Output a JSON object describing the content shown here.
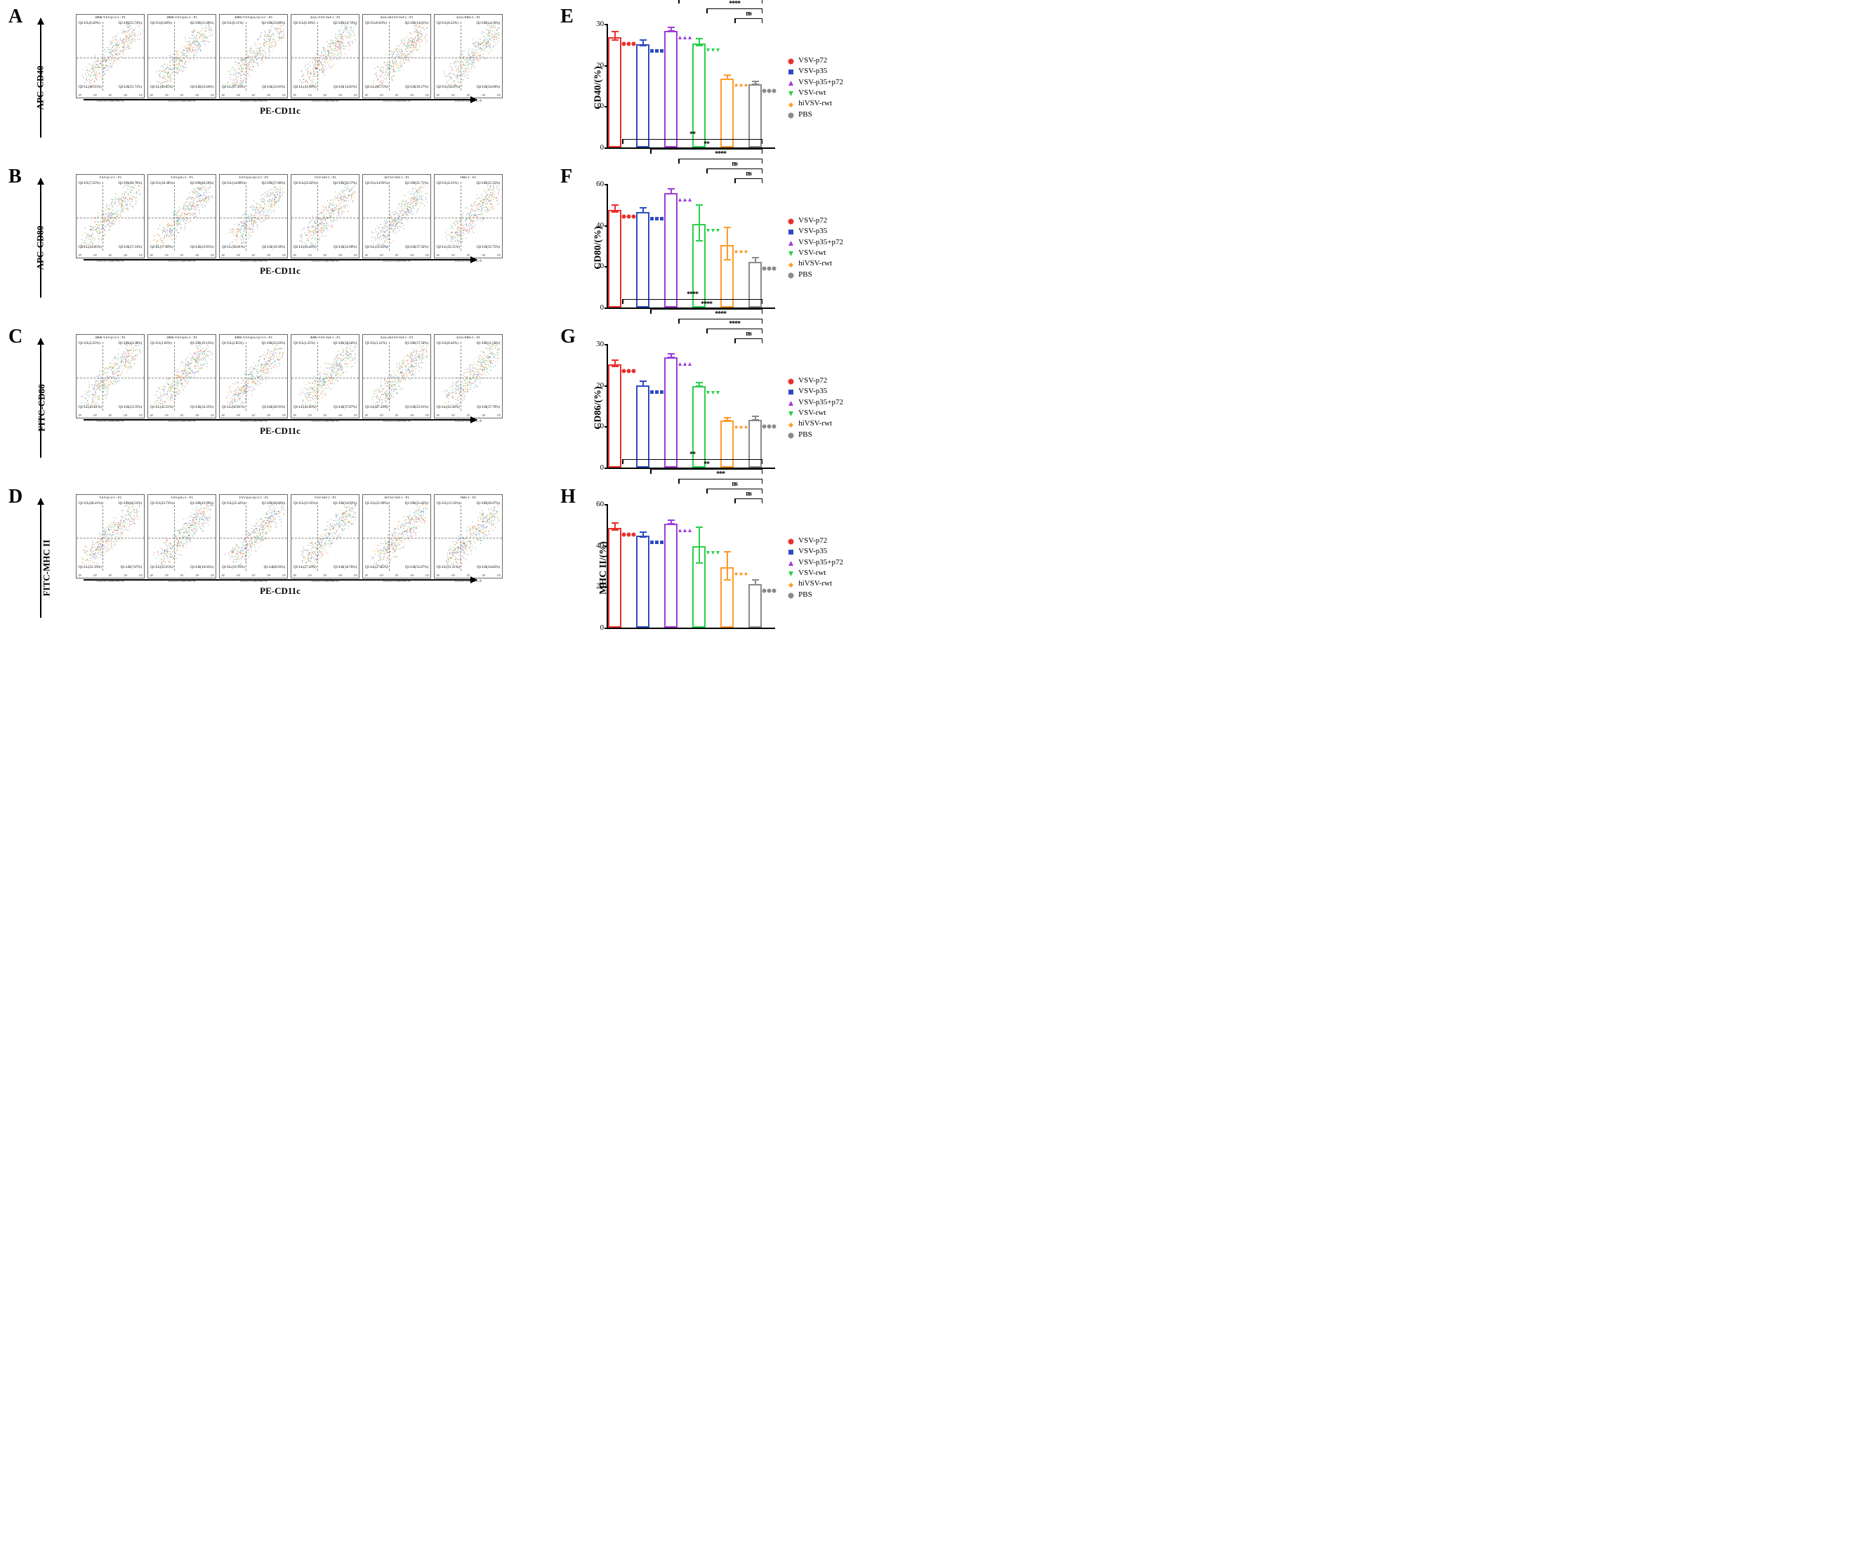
{
  "groups": [
    "VSV-p72",
    "VSV-p35",
    "VSV-p35+p72",
    "VSV-rwt",
    "hiVSV-rwt",
    "PBS"
  ],
  "colors": {
    "VSV-p72": "#e8312f",
    "VSV-p35": "#2e4bc0",
    "VSV-p35+p72": "#a03bd6",
    "VSV-rwt": "#2bcf4a",
    "hiVSV-rwt": "#ff9a2a",
    "PBS": "#8a8a8a"
  },
  "markers": {
    "VSV-p72": "circle",
    "VSV-p35": "square",
    "VSV-p35+p72": "triangle",
    "VSV-rwt": "invtriangle",
    "hiVSV-rwt": "diamond",
    "PBS": "circle"
  },
  "scatter_colors": [
    "#e04a28",
    "#2a4fc4",
    "#f0a828",
    "#2bc46e"
  ],
  "panels_left": [
    {
      "letter": "A",
      "y": "APC-CD40",
      "x": "PE-CD11c",
      "plots": [
        {
          "title": "4086-VSV-p72-1 : P1",
          "ul": "Q2-UL(0.20%)",
          "ur": "Q2-UR(25.74%)",
          "ll": "Q2-LL(68.35%)",
          "lr": "Q2-LR(25.71%)"
        },
        {
          "title": "4086-VSV-p35-1 : P1",
          "ul": "Q2-UL(0.28%)",
          "ur": "Q2-UR(21.60%)",
          "ll": "Q2-LL(60.85%)",
          "lr": "Q2-LR(22.64%)"
        },
        {
          "title": "4086-VSV-p35+p72-1 : P1",
          "ul": "Q2-UL(0.11%)",
          "ur": "Q2-UR(23.89%)",
          "ll": "Q2-LL(67.36%)",
          "lr": "Q2-LR(22.01%)"
        },
        {
          "title": "4335-VSV-rwt-1 : P1",
          "ul": "Q2-UL(0.18%)",
          "ur": "Q2-UR(24.74%)",
          "ll": "Q2-LL(43.99%)",
          "lr": "Q2-LR(14.81%)"
        },
        {
          "title": "4335-hiVSV-rwt-1 : P1",
          "ul": "Q2-UL(0.03%)",
          "ur": "Q2-UR(14.81%)",
          "ll": "Q2-LL(68.75%)",
          "lr": "Q2-LR(30.37%)"
        },
        {
          "title": "4335-PBS-1 : P1",
          "ul": "Q2-UL(0.23%)",
          "ur": "Q2-UR(14.50%)",
          "ll": "Q2-UL(50.67%)",
          "lr": "Q2-LR(34.60%)"
        }
      ]
    },
    {
      "letter": "B",
      "y": "APC-CD80",
      "x": "PE-CD11c",
      "plots": [
        {
          "title": "VSV-p72-1 : P1",
          "ul": "Q2-UL(7.25%)",
          "ur": "Q2-UR(40.76%)",
          "ll": "Q2-LL(24.85%)",
          "lr": "Q2-LR(27.14%)"
        },
        {
          "title": "VSV-p35-1 : P1",
          "ul": "Q2-UL(10.38%)",
          "ur": "Q2-UR(46.50%)",
          "ll": "Q2-LL(17.80%)",
          "lr": "Q2-LR(23.91%)"
        },
        {
          "title": "VSV-p35+p72-1 : P1",
          "ul": "Q2-UL(14.80%)",
          "ur": "Q2-UR(27.66%)",
          "ll": "Q2-LL(58.61%)",
          "lr": "Q2-LR(10.50%)"
        },
        {
          "title": "VSV-rwt-1 : P1",
          "ul": "Q2-UL(25.82%)",
          "ur": "Q2-UR(30.57%)",
          "ll": "Q2-LL(24.16%)",
          "lr": "Q2-LR(22.09%)"
        },
        {
          "title": "hiVSV-rwt-1 : P1",
          "ul": "Q2-UL(14.93%)",
          "ur": "Q2-UR(21.71%)",
          "ll": "Q2-LL(14.50%)",
          "lr": "Q2-LR(37.56%)"
        },
        {
          "title": "PBS-1 : P1",
          "ul": "Q2-UL(4.31%)",
          "ur": "Q2-UR(22.35%)",
          "ll": "Q2-LL(32.15%)",
          "lr": "Q2-LR(35.75%)"
        }
      ]
    },
    {
      "letter": "C",
      "y": "FITC-CD86",
      "x": "PE-CD11c",
      "plots": [
        {
          "title": "4086-VSV-p72-1 : P1",
          "ul": "Q1-UL(2.25%)",
          "ur": "Q1-UR(24.38%)",
          "ll": "Q1-LL(43.81%)",
          "lr": "Q1-LR(23.55%)"
        },
        {
          "title": "4086-VSV-p35-1 : P1",
          "ul": "Q1-UL(1.02%)",
          "ur": "Q1-UR(19.12%)",
          "ll": "Q1-LL(45.51%)",
          "lr": "Q1-LR(34.35%)"
        },
        {
          "title": "4086-VSV-p35+p72-1 : P1",
          "ul": "Q1-UL(2.85%)",
          "ur": "Q1-UR(25.63%)",
          "ll": "Q1-LL(42.81%)",
          "lr": "Q1-LR(28.91%)"
        },
        {
          "title": "4086-VSV-rwt-1 : P1",
          "ul": "Q1-UL(1.35%)",
          "ur": "Q1-UR(18.56%)",
          "ll": "Q1-LL(42.69%)",
          "lr": "Q1-LR(37.87%)"
        },
        {
          "title": "4335-hiVSV-rwt-1 : P1",
          "ul": "Q1-UL(1.21%)",
          "ur": "Q1-UR(17.50%)",
          "ll": "Q1-LL(67.29%)",
          "lr": "Q1-LR(23.91%)"
        },
        {
          "title": "4335-PBS-1 : P1",
          "ul": "Q1-UL(0.42%)",
          "ur": "Q1-UR(11.56%)",
          "ll": "Q1-LL(52.28%)",
          "lr": "Q1-LR(37.70%)"
        }
      ]
    },
    {
      "letter": "D",
      "y": "FITC-MHC II",
      "x": "PE-CD11c",
      "plots": [
        {
          "title": "VSV-p72-1 : P1",
          "ul": "Q1-UL(28.41%)",
          "ur": "Q1-UR(46.52%)",
          "ll": "Q1-LL(22.19%)",
          "lr": "Q1-LR(7.87%)"
        },
        {
          "title": "VSV-p35-1 : P1",
          "ul": "Q1-UL(23.73%)",
          "ur": "Q1-UR(43.99%)",
          "ll": "Q1-LL(22.25%)",
          "lr": "Q1-LR(10.03%)"
        },
        {
          "title": "VSV-p35+p72-1 : P1",
          "ul": "Q1-UL(25.42%)",
          "ur": "Q1-UR(49.66%)",
          "ll": "Q1-LL(19.78%)",
          "lr": "Q1-LR(8.93%)"
        },
        {
          "title": "VSV-rwt-1 : P1",
          "ul": "Q1-UL(21.95%)",
          "ur": "Q1-UR(34.93%)",
          "ll": "Q1-LL(27.20%)",
          "lr": "Q1-LR(18.76%)"
        },
        {
          "title": "hiVSV-rwt-1 : P1",
          "ul": "Q1-UL(21.69%)",
          "ur": "Q1-UR(21.45%)",
          "ll": "Q1-LL(27.85%)",
          "lr": "Q1-LR(32.87%)"
        },
        {
          "title": "PBS-1 : P1",
          "ul": "Q1-UL(13.33%)",
          "ur": "Q1-UR(20.07%)",
          "ll": "Q1-LL(31.31%)",
          "lr": "Q1-LR(34.82%)"
        }
      ]
    }
  ],
  "panels_right": [
    {
      "letter": "E",
      "ylab": "CD40/(%)",
      "ylim": [
        0,
        30
      ],
      "ystep": 10,
      "values": [
        26.5,
        24.8,
        28.0,
        25.0,
        16.5,
        15.2
      ],
      "errs": [
        1.2,
        0.8,
        0.6,
        1.0,
        0.7,
        0.5
      ],
      "sig": [
        {
          "from": 0,
          "to": 5,
          "label": "****",
          "level": 4
        },
        {
          "from": 1,
          "to": 5,
          "label": "****",
          "level": 3
        },
        {
          "from": 2,
          "to": 5,
          "label": "****",
          "level": 2
        },
        {
          "from": 3,
          "to": 5,
          "label": "****",
          "level": 1
        },
        {
          "from": 4,
          "to": 5,
          "label": "ns",
          "level": 0
        }
      ]
    },
    {
      "letter": "F",
      "ylab": "CD80/(%)",
      "ylim": [
        0,
        60
      ],
      "ystep": 20,
      "values": [
        47,
        46,
        55,
        40,
        30,
        22
      ],
      "errs": [
        2,
        1.5,
        1.5,
        9,
        8,
        1.5
      ],
      "sig": [
        {
          "from": 0,
          "to": 5,
          "label": "**",
          "level": 4
        },
        {
          "from": 1,
          "to": 5,
          "label": "**",
          "level": 3
        },
        {
          "from": 2,
          "to": 5,
          "label": "****",
          "level": 2
        },
        {
          "from": 3,
          "to": 5,
          "label": "ns",
          "level": 1
        },
        {
          "from": 4,
          "to": 5,
          "label": "ns",
          "level": 0
        }
      ]
    },
    {
      "letter": "G",
      "ylab": "CD86/(%)",
      "ylim": [
        0,
        30
      ],
      "ystep": 10,
      "values": [
        24.7,
        19.8,
        26.5,
        19.6,
        11.3,
        11.5
      ],
      "errs": [
        1.0,
        0.8,
        0.6,
        0.6,
        0.5,
        0.6
      ],
      "sig": [
        {
          "from": 0,
          "to": 5,
          "label": "****",
          "level": 4
        },
        {
          "from": 1,
          "to": 5,
          "label": "****",
          "level": 3
        },
        {
          "from": 2,
          "to": 5,
          "label": "****",
          "level": 2
        },
        {
          "from": 3,
          "to": 5,
          "label": "****",
          "level": 1
        },
        {
          "from": 4,
          "to": 5,
          "label": "ns",
          "level": 0
        }
      ]
    },
    {
      "letter": "H",
      "ylab": "MHC II/(%)",
      "ylim": [
        0,
        60
      ],
      "ystep": 20,
      "values": [
        48,
        44,
        50,
        39,
        29,
        21
      ],
      "errs": [
        2,
        1.5,
        1.2,
        9,
        7,
        1.5
      ],
      "sig": [
        {
          "from": 0,
          "to": 5,
          "label": "**",
          "level": 4
        },
        {
          "from": 1,
          "to": 5,
          "label": "**",
          "level": 3
        },
        {
          "from": 2,
          "to": 5,
          "label": "***",
          "level": 2
        },
        {
          "from": 3,
          "to": 5,
          "label": "ns",
          "level": 1
        },
        {
          "from": 4,
          "to": 5,
          "label": "ns",
          "level": 0
        }
      ]
    }
  ],
  "scatter_axis_label": "CD11c-1585-PE-A",
  "scatter_ticks": [
    "10¹",
    "10²",
    "10³",
    "10⁴",
    "10⁵"
  ],
  "typography": {
    "panel_letter_size": 28,
    "label_size": 13,
    "legend_size": 11,
    "tick_size": 11
  }
}
